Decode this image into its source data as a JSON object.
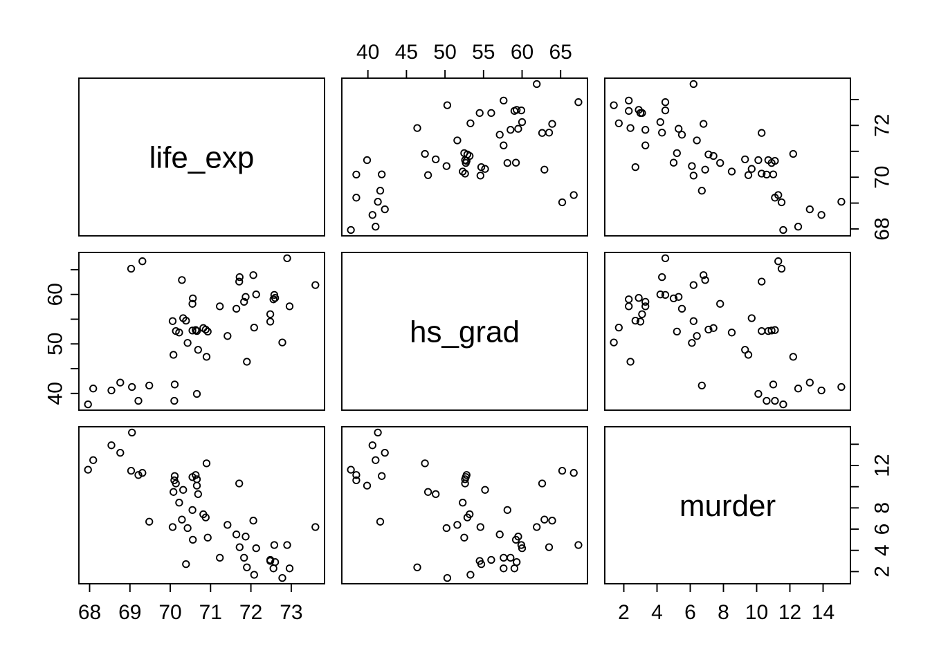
{
  "figure": {
    "background": "#ffffff",
    "stroke_color": "#000000",
    "title": ""
  },
  "chart_data": {
    "type": "scatter",
    "subtype": "scatterplot-matrix",
    "n_points": 50,
    "grid": [
      3,
      3
    ],
    "diagonal_labels": [
      "life_exp",
      "hs_grad",
      "murder"
    ],
    "variables": [
      {
        "name": "life_exp",
        "label": "life_exp",
        "range": [
          67.734,
          73.826
        ],
        "ticks": [
          68,
          69,
          70,
          71,
          72,
          73
        ],
        "bottom_labels": [
          "68",
          "69",
          "70",
          "71",
          "72",
          "73"
        ],
        "right_labels": [
          "68",
          "",
          "70",
          "",
          "72",
          ""
        ]
      },
      {
        "name": "hs_grad",
        "label": "hs_grad",
        "range": [
          36.62,
          68.48
        ],
        "ticks": [
          40,
          45,
          50,
          55,
          60,
          65
        ],
        "top_labels": [
          "40",
          "45",
          "50",
          "55",
          "60",
          "65"
        ],
        "left_labels": [
          "40",
          "",
          "50",
          "",
          "60",
          ""
        ]
      },
      {
        "name": "murder",
        "label": "murder",
        "range": [
          0.852,
          15.648
        ],
        "ticks": [
          2,
          4,
          6,
          8,
          10,
          12,
          14
        ],
        "bottom_labels": [
          "2",
          "4",
          "6",
          "8",
          "10",
          "12",
          "14"
        ],
        "right_labels": [
          "2",
          "4",
          "6",
          "8",
          "",
          "12",
          ""
        ]
      }
    ],
    "axes": [
      {
        "side": "top",
        "col": 1,
        "var": "hs_grad"
      },
      {
        "side": "bottom",
        "col": 0,
        "var": "life_exp"
      },
      {
        "side": "bottom",
        "col": 2,
        "var": "murder"
      },
      {
        "side": "left",
        "row": 1,
        "var": "hs_grad"
      },
      {
        "side": "right",
        "row": 0,
        "var": "life_exp"
      },
      {
        "side": "right",
        "row": 2,
        "var": "murder"
      }
    ],
    "observations": {
      "life_exp": [
        69.05,
        69.31,
        70.55,
        70.66,
        71.71,
        72.06,
        72.48,
        70.06,
        70.66,
        68.54,
        73.6,
        71.87,
        70.14,
        70.88,
        72.56,
        72.58,
        70.1,
        68.76,
        70.39,
        70.22,
        71.83,
        70.63,
        72.96,
        68.09,
        70.69,
        70.56,
        72.6,
        69.03,
        71.23,
        70.93,
        70.32,
        70.55,
        69.21,
        72.78,
        70.82,
        71.42,
        72.13,
        70.43,
        71.9,
        67.96,
        72.08,
        70.11,
        70.9,
        72.9,
        71.64,
        70.08,
        71.72,
        69.48,
        72.48,
        70.29
      ],
      "hs_grad": [
        41.3,
        66.7,
        58.1,
        39.9,
        62.6,
        63.9,
        56.0,
        54.6,
        52.6,
        40.6,
        61.9,
        59.5,
        52.6,
        52.9,
        59.0,
        59.9,
        38.5,
        42.2,
        54.7,
        52.3,
        58.5,
        52.8,
        57.6,
        41.0,
        48.8,
        59.2,
        59.3,
        65.2,
        57.6,
        52.5,
        55.2,
        52.7,
        38.5,
        50.3,
        53.2,
        51.6,
        60.0,
        50.2,
        46.4,
        37.8,
        53.3,
        41.8,
        47.4,
        67.3,
        57.1,
        47.8,
        63.5,
        41.6,
        54.5,
        62.9
      ],
      "murder": [
        15.1,
        11.3,
        7.8,
        10.1,
        10.3,
        6.8,
        3.1,
        6.2,
        10.7,
        13.9,
        6.2,
        5.3,
        10.3,
        7.1,
        2.3,
        4.5,
        10.6,
        13.2,
        2.7,
        8.5,
        3.3,
        11.1,
        2.3,
        12.5,
        9.3,
        5.0,
        2.9,
        11.5,
        3.3,
        5.2,
        9.7,
        10.9,
        11.1,
        1.4,
        7.4,
        6.4,
        4.2,
        6.1,
        2.4,
        11.6,
        1.7,
        11.0,
        12.2,
        4.5,
        5.5,
        9.5,
        4.3,
        6.7,
        3.0,
        6.9
      ]
    }
  }
}
